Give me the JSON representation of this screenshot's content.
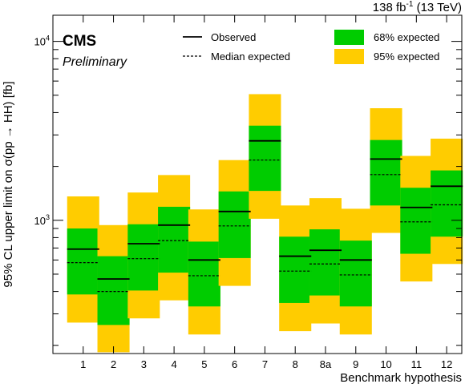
{
  "header": {
    "lumi_label": "138 fb",
    "lumi_sup": "-1",
    "energy_label": " (13 TeV)",
    "experiment": "CMS",
    "status": "Preliminary"
  },
  "chart_data": {
    "type": "band",
    "ylabel": "95% CL upper limit on σ(pp → HH) [fb]",
    "xlabel": "Benchmark hypothesis",
    "yscale": "log",
    "ylim": [
      180,
      14000
    ],
    "ytick_labels": [
      {
        "value": 1000,
        "base": "10",
        "exp": "3"
      },
      {
        "value": 10000,
        "base": "10",
        "exp": "4"
      }
    ],
    "legend": {
      "observed": "Observed",
      "median": "Median expected",
      "band68": "68% expected",
      "band95": "95% expected"
    },
    "colors": {
      "band68": "#00cc00",
      "band95": "#ffcc00",
      "lines": "#000000"
    },
    "categories": [
      "1",
      "2",
      "3",
      "4",
      "5",
      "6",
      "7",
      "8",
      "8a",
      "9",
      "10",
      "11",
      "12"
    ],
    "observed": [
      690,
      470,
      740,
      940,
      600,
      1120,
      2780,
      630,
      680,
      600,
      2200,
      1180,
      1550
    ],
    "expected": [
      580,
      400,
      610,
      770,
      490,
      930,
      2170,
      520,
      570,
      495,
      1800,
      980,
      1220
    ],
    "band68_low": [
      385,
      260,
      405,
      510,
      330,
      615,
      1460,
      345,
      380,
      330,
      1210,
      650,
      810
    ],
    "band68_high": [
      900,
      630,
      950,
      1190,
      760,
      1450,
      3380,
      810,
      890,
      770,
      2810,
      1520,
      1900
    ],
    "band95_low": [
      268,
      183,
      283,
      357,
      230,
      430,
      1020,
      240,
      265,
      230,
      850,
      455,
      570
    ],
    "band95_high": [
      1360,
      940,
      1430,
      1790,
      1150,
      2170,
      5070,
      1210,
      1330,
      1160,
      4230,
      2290,
      2860
    ]
  }
}
